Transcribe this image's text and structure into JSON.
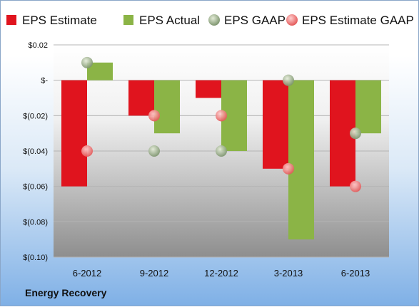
{
  "footer": {
    "company": "Energy Recovery"
  },
  "colors": {
    "estimate": "#e0141e",
    "actual": "#8bb446",
    "gaap": "#9aab8a",
    "estimate_gaap": "#f08a8a"
  },
  "chart_data": {
    "type": "bar",
    "categories": [
      "6-2012",
      "9-2012",
      "12-2012",
      "3-2013",
      "6-2013"
    ],
    "series": [
      {
        "name": "EPS Estimate",
        "kind": "bar",
        "values": [
          -0.06,
          -0.02,
          -0.01,
          -0.05,
          -0.06
        ]
      },
      {
        "name": "EPS Actual",
        "kind": "bar",
        "values": [
          0.01,
          -0.03,
          -0.04,
          -0.09,
          -0.03
        ]
      },
      {
        "name": "EPS GAAP",
        "kind": "marker",
        "values": [
          0.01,
          -0.04,
          -0.04,
          0.0,
          -0.03
        ]
      },
      {
        "name": "EPS Estimate GAAP",
        "kind": "marker",
        "values": [
          -0.04,
          -0.02,
          -0.02,
          -0.05,
          -0.06
        ]
      }
    ],
    "ylim": [
      -0.1,
      0.02
    ],
    "yticks": [
      {
        "value": 0.02,
        "label": "$0.02"
      },
      {
        "value": 0.0,
        "label": "$-"
      },
      {
        "value": -0.02,
        "label": "$(0.02)"
      },
      {
        "value": -0.04,
        "label": "$(0.04)"
      },
      {
        "value": -0.06,
        "label": "$(0.06)"
      },
      {
        "value": -0.08,
        "label": "$(0.08)"
      },
      {
        "value": -0.1,
        "label": "$(0.10)"
      }
    ],
    "grid": true,
    "legend_position": "top"
  }
}
